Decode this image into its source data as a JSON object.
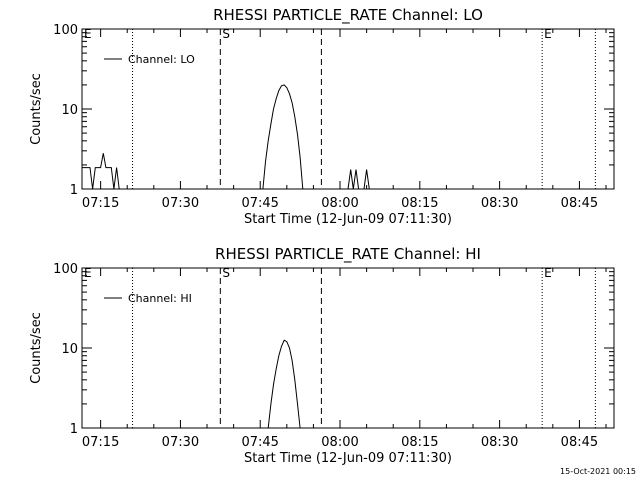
{
  "timestamp": "15-Oct-2021 00:15",
  "chart_data": [
    {
      "type": "line",
      "title": "RHESSI PARTICLE_RATE Channel: LO",
      "xlabel": "Start Time (12-Jun-09 07:11:30)",
      "ylabel": "Counts/sec",
      "yscale": "log",
      "ylim": [
        1,
        100
      ],
      "xlim": [
        "07:11:30",
        "08:51:30"
      ],
      "x_ticks": [
        "07:15",
        "07:30",
        "07:45",
        "08:00",
        "08:15",
        "08:30",
        "08:45"
      ],
      "y_ticks": [
        "1",
        "10",
        "100"
      ],
      "legend": {
        "entries": [
          "Channel: LO"
        ],
        "position": "top-left"
      },
      "flags": [
        {
          "label": "E",
          "time": "07:11:30"
        },
        {
          "label": "S",
          "time": "07:37:30"
        },
        {
          "label": "E",
          "time": "08:38:00"
        }
      ],
      "dotted_lines": [
        "07:21:00",
        "08:38:00",
        "08:48:00"
      ],
      "dashed_lines": [
        "07:37:30",
        "07:56:30"
      ],
      "series": [
        {
          "name": "Channel: LO",
          "segments": [
            [
              [
                "07:11:30",
                1.85
              ],
              [
                "07:13:00",
                1.85
              ],
              [
                "07:13:30",
                1.0
              ],
              [
                "07:14:00",
                1.85
              ],
              [
                "07:15:00",
                1.85
              ],
              [
                "07:15:30",
                2.8
              ],
              [
                "07:16:00",
                1.85
              ],
              [
                "07:17:00",
                1.85
              ],
              [
                "07:17:30",
                1.0
              ],
              [
                "07:18:00",
                1.85
              ],
              [
                "07:18:30",
                1.0
              ]
            ],
            [
              [
                "07:45:30",
                1.0
              ],
              [
                "07:46:00",
                2.2
              ],
              [
                "07:46:30",
                4.0
              ],
              [
                "07:47:00",
                6.5
              ],
              [
                "07:47:30",
                10.0
              ],
              [
                "07:48:00",
                13.5
              ],
              [
                "07:48:30",
                17.0
              ],
              [
                "07:49:00",
                19.5
              ],
              [
                "07:49:30",
                20.0
              ],
              [
                "07:50:00",
                18.5
              ],
              [
                "07:50:30",
                15.5
              ],
              [
                "07:51:00",
                12.0
              ],
              [
                "07:51:30",
                8.0
              ],
              [
                "07:52:00",
                4.8
              ],
              [
                "07:52:30",
                2.5
              ],
              [
                "07:53:00",
                1.0
              ]
            ],
            [
              [
                "08:01:30",
                1.0
              ],
              [
                "08:02:00",
                1.75
              ],
              [
                "08:02:30",
                1.0
              ],
              [
                "08:03:00",
                1.75
              ],
              [
                "08:03:30",
                1.0
              ]
            ],
            [
              [
                "08:04:30",
                1.0
              ],
              [
                "08:05:00",
                1.75
              ],
              [
                "08:05:30",
                1.0
              ]
            ]
          ]
        }
      ]
    },
    {
      "type": "line",
      "title": "RHESSI PARTICLE_RATE Channel: HI",
      "xlabel": "Start Time (12-Jun-09 07:11:30)",
      "ylabel": "Counts/sec",
      "yscale": "log",
      "ylim": [
        1,
        100
      ],
      "xlim": [
        "07:11:30",
        "08:51:30"
      ],
      "x_ticks": [
        "07:15",
        "07:30",
        "07:45",
        "08:00",
        "08:15",
        "08:30",
        "08:45"
      ],
      "y_ticks": [
        "1",
        "10",
        "100"
      ],
      "legend": {
        "entries": [
          "Channel: HI"
        ],
        "position": "top-left"
      },
      "flags": [
        {
          "label": "E",
          "time": "07:11:30"
        },
        {
          "label": "S",
          "time": "07:37:30"
        },
        {
          "label": "E",
          "time": "08:38:00"
        }
      ],
      "dotted_lines": [
        "07:21:00",
        "08:38:00",
        "08:48:00"
      ],
      "dashed_lines": [
        "07:37:30",
        "07:56:30"
      ],
      "series": [
        {
          "name": "Channel: HI",
          "segments": [
            [
              [
                "07:46:30",
                1.0
              ],
              [
                "07:47:00",
                2.0
              ],
              [
                "07:47:30",
                3.5
              ],
              [
                "07:48:00",
                5.5
              ],
              [
                "07:48:30",
                8.0
              ],
              [
                "07:49:00",
                10.5
              ],
              [
                "07:49:30",
                12.5
              ],
              [
                "07:50:00",
                12.0
              ],
              [
                "07:50:30",
                10.0
              ],
              [
                "07:51:00",
                7.0
              ],
              [
                "07:51:30",
                4.0
              ],
              [
                "07:52:00",
                2.0
              ],
              [
                "07:52:30",
                1.0
              ]
            ]
          ]
        }
      ]
    }
  ]
}
